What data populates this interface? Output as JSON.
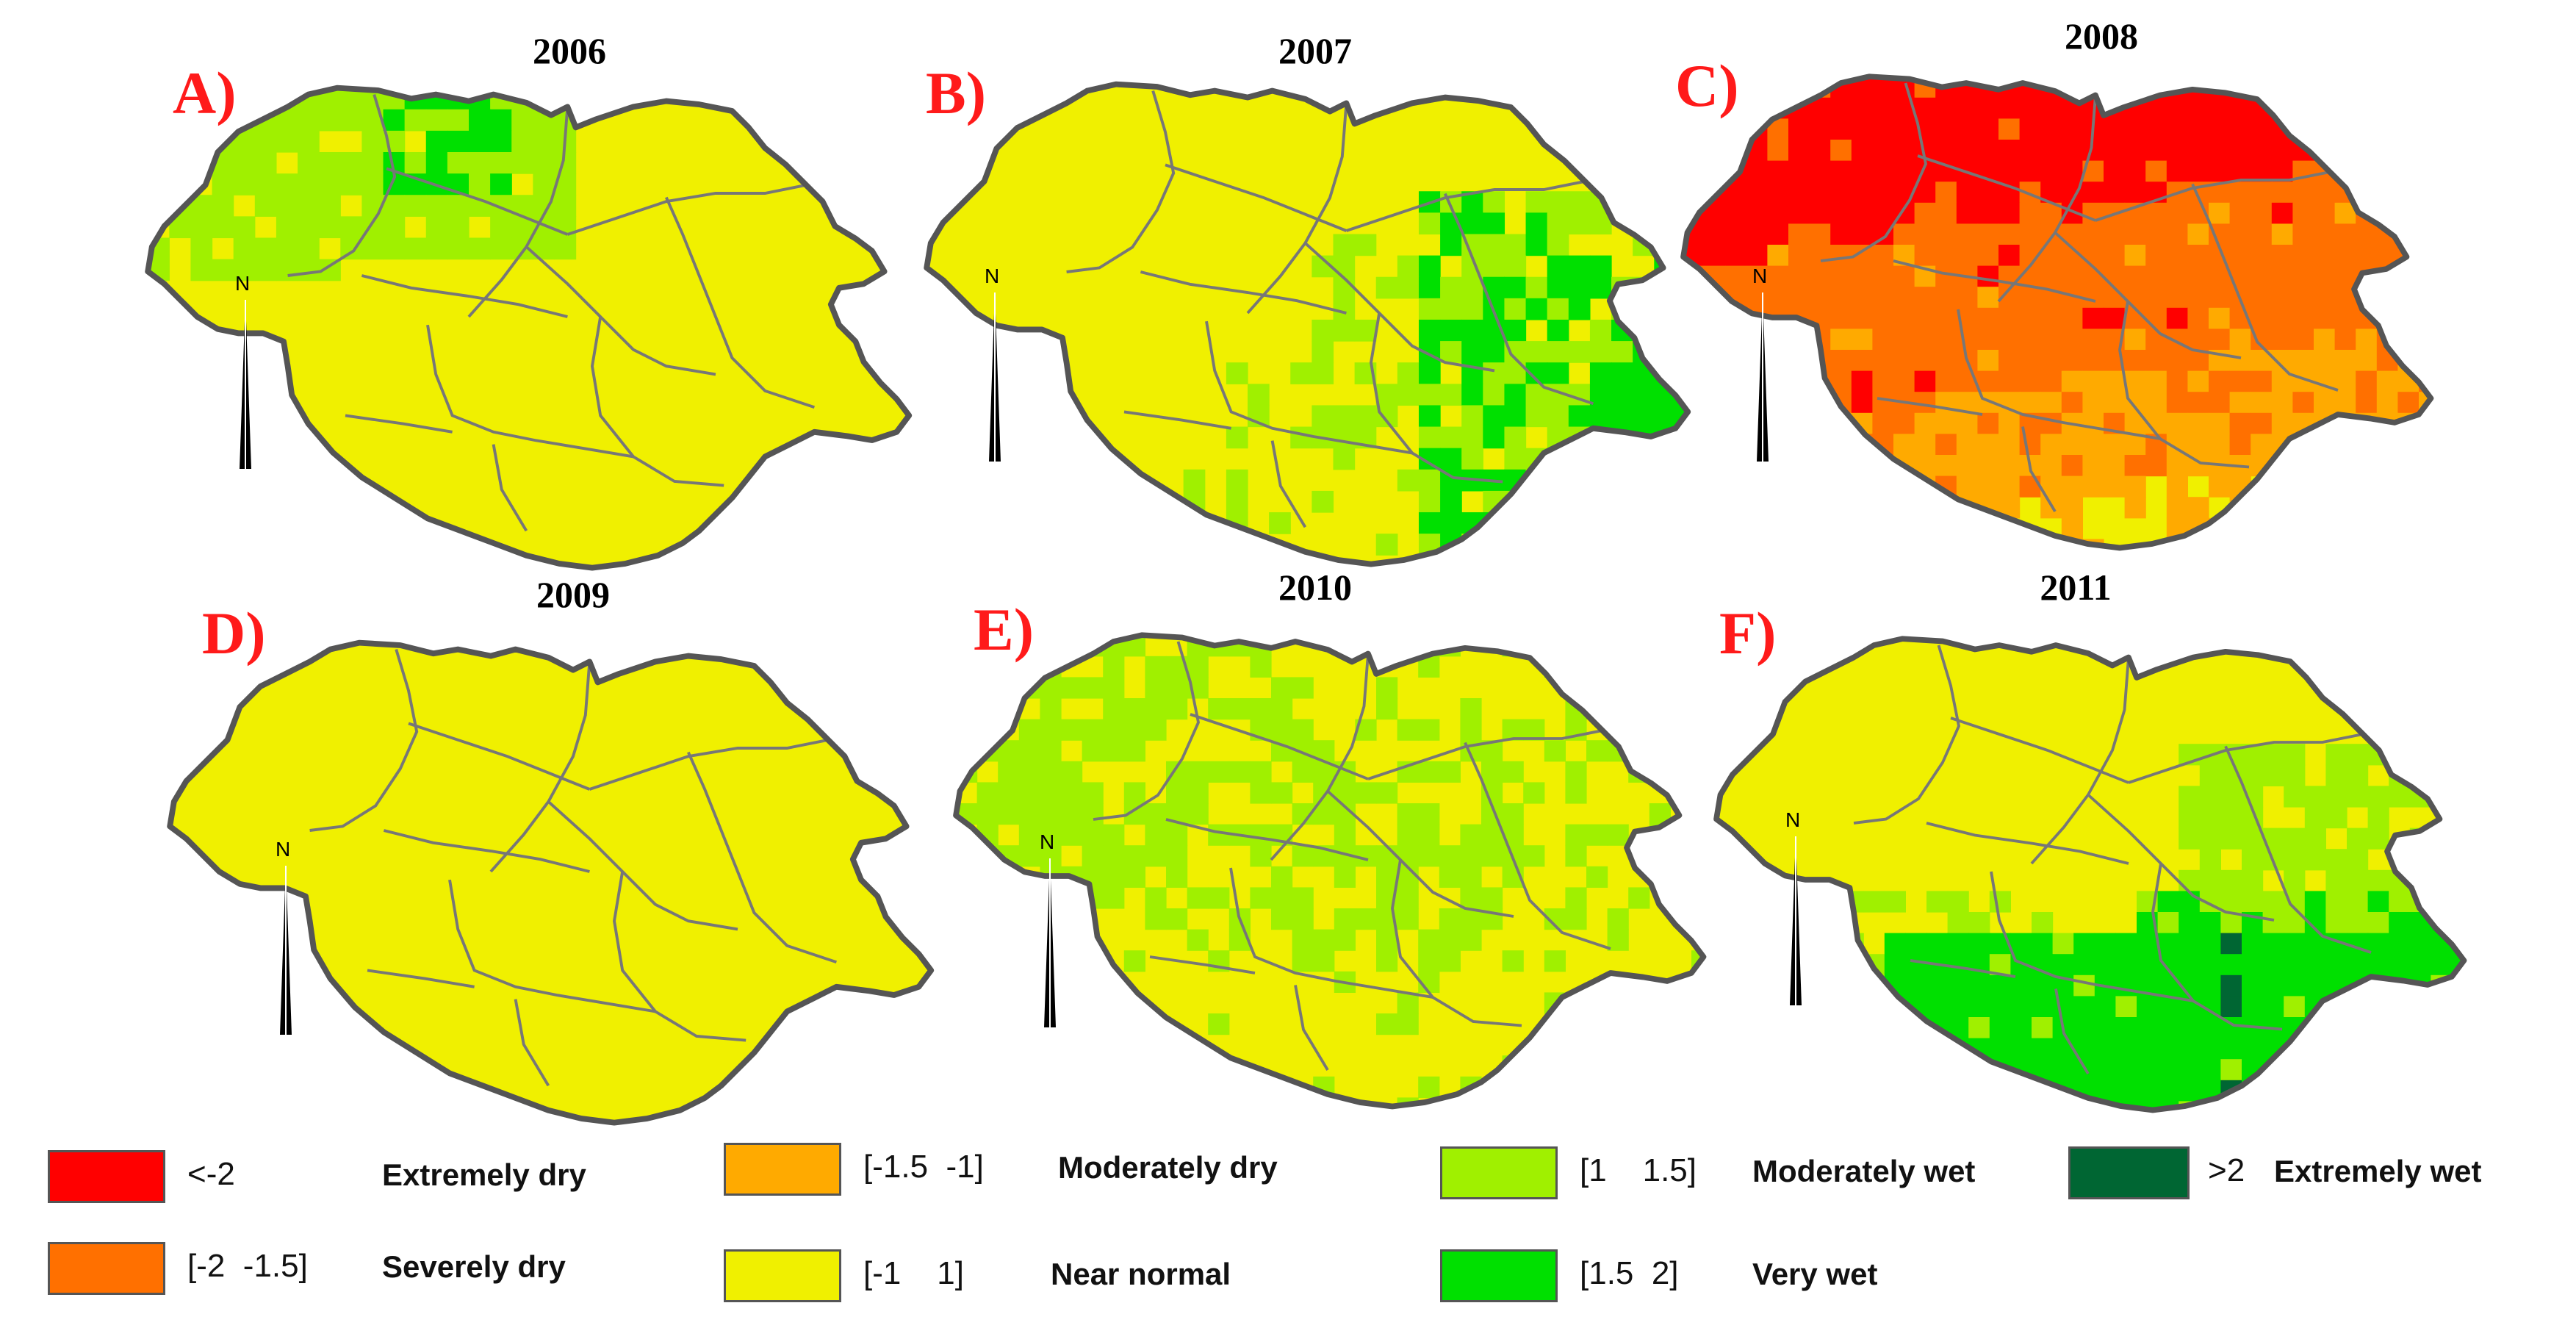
{
  "panels": [
    {
      "letter": "A)",
      "year": "2006"
    },
    {
      "letter": "B)",
      "year": "2007"
    },
    {
      "letter": "C)",
      "year": "2008"
    },
    {
      "letter": "D)",
      "year": "2009"
    },
    {
      "letter": "E)",
      "year": "2010"
    },
    {
      "letter": "F)",
      "year": "2011"
    }
  ],
  "north_label": "N",
  "legend": [
    {
      "range": "<-2",
      "label": "Extremely dry",
      "color": "#ff0000"
    },
    {
      "range": "[-2  -1.5]",
      "label": "Severely dry",
      "color": "#ff7000"
    },
    {
      "range": "[-1.5  -1]",
      "label": "Moderately dry",
      "color": "#ffaa00"
    },
    {
      "range": "[-1    1]",
      "label": "Near normal",
      "color": "#f0f000"
    },
    {
      "range": "[1    1.5]",
      "label": "Moderately wet",
      "color": "#a0f000"
    },
    {
      "range": "[1.5  2]",
      "label": "Very wet",
      "color": "#00e000"
    },
    {
      "range": ">2",
      "label": "Extremely wet",
      "color": "#006633"
    }
  ],
  "colors": {
    "border": "#555555",
    "inner_border": "#777777",
    "letter": "#ff1a1a"
  }
}
